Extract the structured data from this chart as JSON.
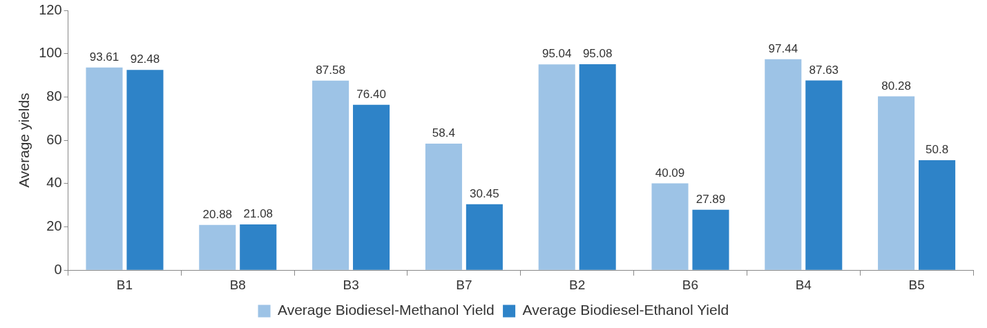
{
  "chart_data": {
    "type": "bar",
    "ylabel": "Average yields",
    "categories": [
      "B1",
      "B8",
      "B3",
      "B7",
      "B2",
      "B6",
      "B4",
      "B5"
    ],
    "series": [
      {
        "name": "Average Biodiesel-Methanol Yield",
        "color": "#9dc3e6",
        "values": [
          93.61,
          20.88,
          87.58,
          58.4,
          95.04,
          40.09,
          97.44,
          80.28
        ],
        "value_labels": [
          "93.61",
          "20.88",
          "87.58",
          "58.4",
          "95.04",
          "40.09",
          "97.44",
          "80.28"
        ]
      },
      {
        "name": "Average Biodiesel-Ethanol Yield",
        "color": "#2e83c8",
        "values": [
          92.48,
          21.08,
          76.4,
          30.45,
          95.08,
          27.89,
          87.63,
          50.8
        ],
        "value_labels": [
          "92.48",
          "21.08",
          "76.40",
          "30.45",
          "95.08",
          "27.89",
          "87.63",
          "50.8"
        ]
      }
    ],
    "ylim": [
      0,
      120
    ],
    "yticks": [
      0,
      20,
      40,
      60,
      80,
      100,
      120
    ],
    "grid": false,
    "legend": "bottom"
  }
}
